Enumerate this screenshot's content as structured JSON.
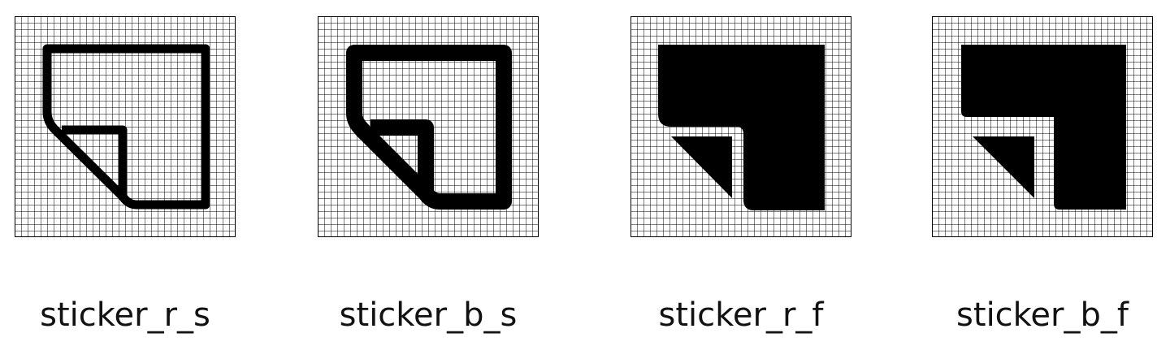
{
  "icons": [
    {
      "label": "sticker_r_s",
      "icon_name": "sticker-rounded-stroke-icon",
      "style": "rounded",
      "variant": "stroke"
    },
    {
      "label": "sticker_b_s",
      "icon_name": "sticker-bold-stroke-icon",
      "style": "bold",
      "variant": "stroke"
    },
    {
      "label": "sticker_r_f",
      "icon_name": "sticker-rounded-filled-icon",
      "style": "rounded",
      "variant": "filled"
    },
    {
      "label": "sticker_b_f",
      "icon_name": "sticker-bold-filled-icon",
      "style": "bold",
      "variant": "filled"
    }
  ],
  "colors": {
    "icon": "#000000",
    "grid": "#000000",
    "background": "#ffffff"
  }
}
